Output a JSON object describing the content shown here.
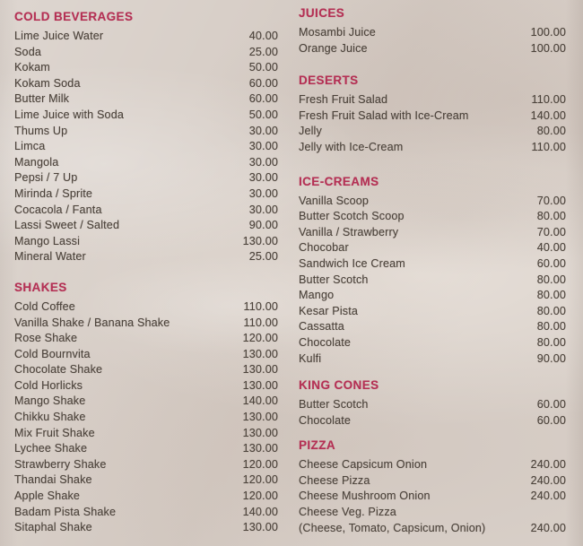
{
  "page": {
    "background_color": "#d8cfc8",
    "heading_color": "#b43054",
    "text_color": "#4d443c",
    "currency_format": "0.00"
  },
  "menu": {
    "columns": [
      {
        "sections": [
          {
            "title": "COLD BEVERAGES",
            "items": [
              {
                "name": "Lime Juice Water",
                "price": "40.00"
              },
              {
                "name": "Soda",
                "price": "25.00"
              },
              {
                "name": "Kokam",
                "price": "50.00"
              },
              {
                "name": "Kokam Soda",
                "price": "60.00"
              },
              {
                "name": "Butter Milk",
                "price": "60.00"
              },
              {
                "name": "Lime Juice with Soda",
                "price": "50.00"
              },
              {
                "name": "Thums Up",
                "price": "30.00"
              },
              {
                "name": "Limca",
                "price": "30.00"
              },
              {
                "name": "Mangola",
                "price": "30.00"
              },
              {
                "name": "Pepsi / 7 Up",
                "price": "30.00"
              },
              {
                "name": "Mirinda / Sprite",
                "price": "30.00"
              },
              {
                "name": "Cocacola / Fanta",
                "price": "30.00"
              },
              {
                "name": "Lassi Sweet / Salted",
                "price": "90.00"
              },
              {
                "name": "Mango Lassi",
                "price": "130.00"
              },
              {
                "name": "Mineral Water",
                "price": "25.00"
              }
            ]
          },
          {
            "title": "SHAKES",
            "items": [
              {
                "name": "Cold Coffee",
                "price": "110.00"
              },
              {
                "name": "Vanilla Shake / Banana Shake",
                "price": "110.00"
              },
              {
                "name": "Rose Shake",
                "price": "120.00"
              },
              {
                "name": "Cold Bournvita",
                "price": "130.00"
              },
              {
                "name": "Chocolate Shake",
                "price": "130.00"
              },
              {
                "name": "Cold Horlicks",
                "price": "130.00"
              },
              {
                "name": "Mango Shake",
                "price": "140.00"
              },
              {
                "name": "Chikku Shake",
                "price": "130.00"
              },
              {
                "name": "Mix Fruit Shake",
                "price": "130.00"
              },
              {
                "name": "Lychee Shake",
                "price": "130.00"
              },
              {
                "name": "Strawberry Shake",
                "price": "120.00"
              },
              {
                "name": "Thandai Shake",
                "price": "120.00"
              },
              {
                "name": "Apple Shake",
                "price": "120.00"
              },
              {
                "name": "Badam Pista Shake",
                "price": "140.00"
              },
              {
                "name": "Sitaphal Shake",
                "price": "130.00"
              }
            ]
          }
        ]
      },
      {
        "sections": [
          {
            "title": "JUICES",
            "items": [
              {
                "name": "Mosambi Juice",
                "price": "100.00"
              },
              {
                "name": "Orange Juice",
                "price": "100.00"
              }
            ]
          },
          {
            "title": "DESERTS",
            "items": [
              {
                "name": "Fresh Fruit Salad",
                "price": "110.00"
              },
              {
                "name": "Fresh Fruit Salad with Ice-Cream",
                "price": "140.00"
              },
              {
                "name": "Jelly",
                "price": "80.00"
              },
              {
                "name": "Jelly with Ice-Cream",
                "price": "110.00"
              }
            ]
          },
          {
            "title": "ICE-CREAMS",
            "items": [
              {
                "name": "Vanilla Scoop",
                "price": "70.00"
              },
              {
                "name": "Butter Scotch Scoop",
                "price": "80.00"
              },
              {
                "name": "Vanilla / Strawberry",
                "price": "70.00"
              },
              {
                "name": "Chocobar",
                "price": "40.00"
              },
              {
                "name": "Sandwich Ice Cream",
                "price": "60.00"
              },
              {
                "name": "Butter Scotch",
                "price": "80.00"
              },
              {
                "name": "Mango",
                "price": "80.00"
              },
              {
                "name": "Kesar Pista",
                "price": "80.00"
              },
              {
                "name": "Cassatta",
                "price": "80.00"
              },
              {
                "name": "Chocolate",
                "price": "80.00"
              },
              {
                "name": "Kulfi",
                "price": "90.00"
              }
            ]
          },
          {
            "title": "KING CONES",
            "items": [
              {
                "name": "Butter Scotch",
                "price": "60.00"
              },
              {
                "name": "Chocolate",
                "price": "60.00"
              }
            ]
          },
          {
            "title": "PIZZA",
            "items": [
              {
                "name": "Cheese Capsicum Onion",
                "price": "240.00"
              },
              {
                "name": "Cheese Pizza",
                "price": "240.00"
              },
              {
                "name": "Cheese Mushroom Onion",
                "price": "240.00"
              },
              {
                "name": "Cheese Veg. Pizza",
                "price": "",
                "note": "(Cheese, Tomato, Capsicum, Onion)",
                "note_price": "240.00"
              }
            ]
          }
        ]
      }
    ]
  }
}
